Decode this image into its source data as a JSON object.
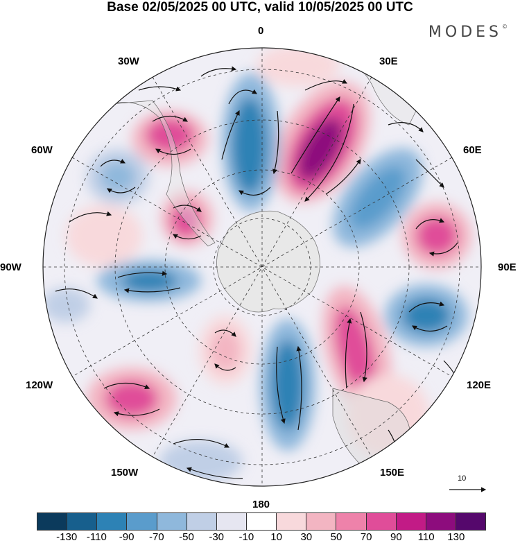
{
  "title": "Base 02/05/2025 00 UTC, valid 10/05/2025 00 UTC",
  "brand": "MODES",
  "brand_mark": "©",
  "lon_labels": {
    "top": "0",
    "top_right": "30E",
    "upper_right": "60E",
    "right": "90E",
    "lower_right": "120E",
    "bottom_right": "150E",
    "bottom": "180",
    "bottom_left": "150W",
    "lower_left": "120W",
    "left": "90W",
    "upper_left": "60W",
    "top_left": "30W"
  },
  "vector_scale": "10",
  "colorbar": {
    "colors": [
      "#0b3a5c",
      "#175f8d",
      "#2d82b5",
      "#5a9ccc",
      "#8fb8dc",
      "#c0cfe6",
      "#e6e6f1",
      "#ffffff",
      "#f8d9dc",
      "#f3b5c2",
      "#ee82aa",
      "#e04d99",
      "#c21b86",
      "#8d0c7d",
      "#55086c"
    ],
    "ticks": [
      "-130",
      "-110",
      "-90",
      "-70",
      "-50",
      "-30",
      "-10",
      "10",
      "30",
      "50",
      "70",
      "90",
      "110",
      "130"
    ]
  }
}
